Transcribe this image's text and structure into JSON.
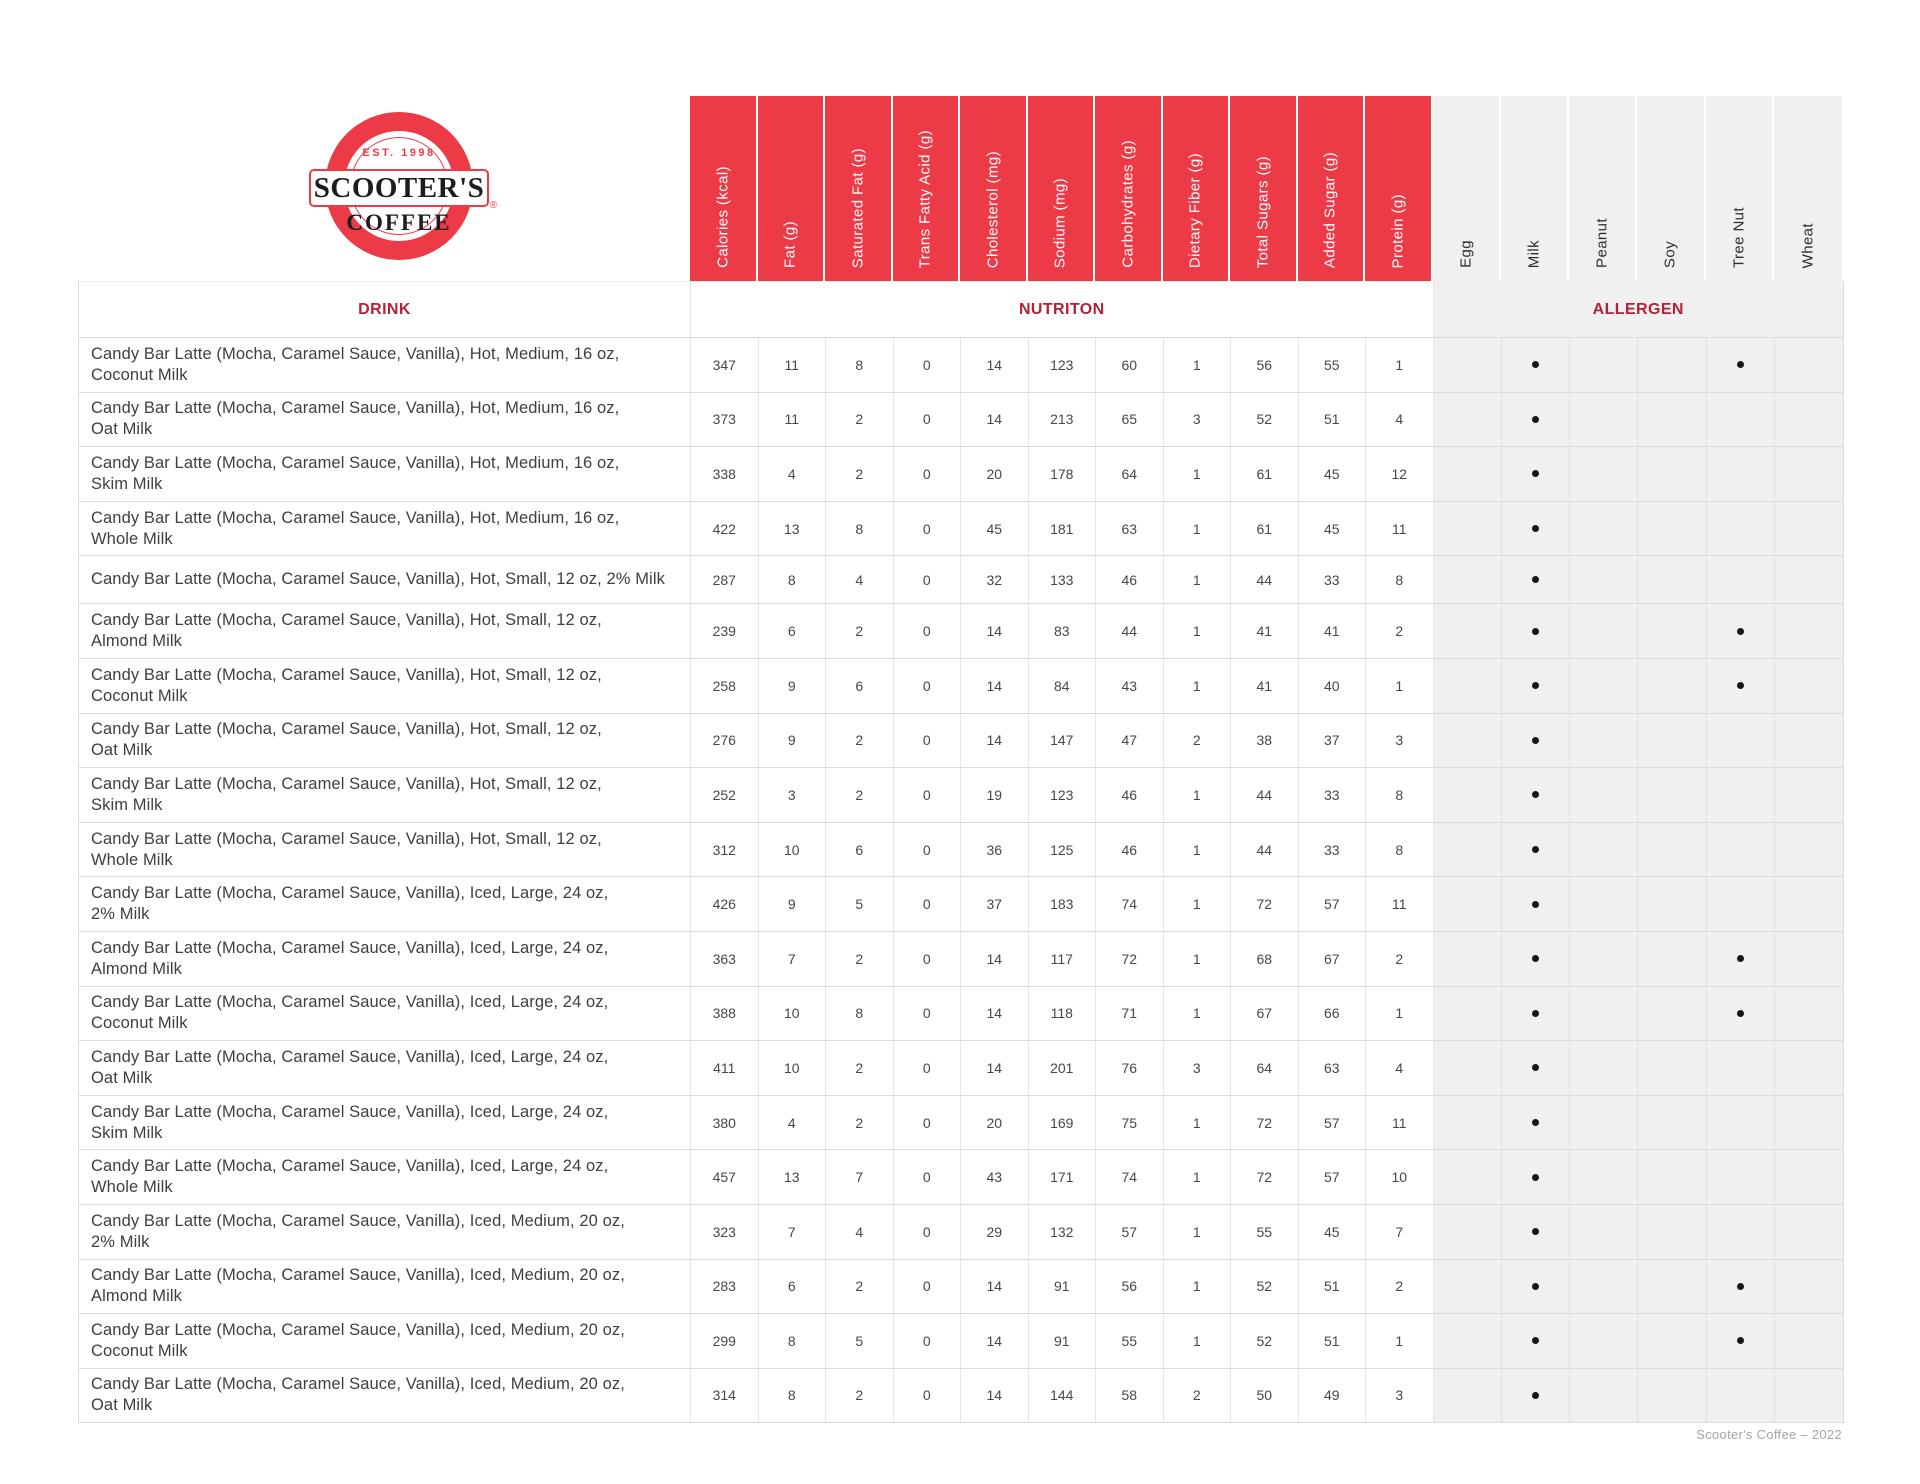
{
  "logo": {
    "est": "EST. 1998",
    "brand_top": "SCOOTER'S",
    "brand_bottom": "COFFEE",
    "registered_mark": "®"
  },
  "colors": {
    "brand_red": "#ec3a47",
    "section_header_text": "#b32139",
    "allergen_bg": "#f0f0f1",
    "dot": "#161616"
  },
  "section_headers": {
    "drink": "DRINK",
    "nutrition": "NUTRITON",
    "allergen": "ALLERGEN"
  },
  "nutrition_columns": [
    "Calories (kcal)",
    "Fat (g)",
    "Saturated Fat (g)",
    "Trans Fatty Acid (g)",
    "Cholesterol (mg)",
    "Sodium (mg)",
    "Carbohydrates (g)",
    "Dietary Fiber (g)",
    "Total Sugars (g)",
    "Added Sugar (g)",
    "Protein (g)"
  ],
  "allergen_columns": [
    "Egg",
    "Milk",
    "Peanut",
    "Soy",
    "Tree Nut",
    "Wheat"
  ],
  "rows": [
    {
      "name_lines": [
        "Candy Bar Latte (Mocha, Caramel Sauce, Vanilla), Hot, Medium, 16 oz,",
        "Coconut Milk"
      ],
      "values": [
        347,
        11,
        8,
        0,
        14,
        123,
        60,
        1,
        56,
        55,
        1
      ],
      "allergens": [
        0,
        1,
        0,
        0,
        1,
        0
      ]
    },
    {
      "name_lines": [
        "Candy Bar Latte (Mocha, Caramel Sauce, Vanilla), Hot, Medium, 16 oz,",
        "Oat Milk"
      ],
      "values": [
        373,
        11,
        2,
        0,
        14,
        213,
        65,
        3,
        52,
        51,
        4
      ],
      "allergens": [
        0,
        1,
        0,
        0,
        0,
        0
      ]
    },
    {
      "name_lines": [
        "Candy Bar Latte (Mocha, Caramel Sauce, Vanilla), Hot, Medium, 16 oz,",
        "Skim Milk"
      ],
      "values": [
        338,
        4,
        2,
        0,
        20,
        178,
        64,
        1,
        61,
        45,
        12
      ],
      "allergens": [
        0,
        1,
        0,
        0,
        0,
        0
      ]
    },
    {
      "name_lines": [
        "Candy Bar Latte (Mocha, Caramel Sauce, Vanilla), Hot, Medium, 16 oz,",
        "Whole Milk"
      ],
      "values": [
        422,
        13,
        8,
        0,
        45,
        181,
        63,
        1,
        61,
        45,
        11
      ],
      "allergens": [
        0,
        1,
        0,
        0,
        0,
        0
      ]
    },
    {
      "name_lines": [
        "Candy Bar Latte (Mocha, Caramel Sauce, Vanilla), Hot, Small, 12 oz, 2% Milk"
      ],
      "values": [
        287,
        8,
        4,
        0,
        32,
        133,
        46,
        1,
        44,
        33,
        8
      ],
      "allergens": [
        0,
        1,
        0,
        0,
        0,
        0
      ]
    },
    {
      "name_lines": [
        "Candy Bar Latte (Mocha, Caramel Sauce, Vanilla), Hot, Small, 12 oz,",
        "Almond Milk"
      ],
      "values": [
        239,
        6,
        2,
        0,
        14,
        83,
        44,
        1,
        41,
        41,
        2
      ],
      "allergens": [
        0,
        1,
        0,
        0,
        1,
        0
      ]
    },
    {
      "name_lines": [
        "Candy Bar Latte (Mocha, Caramel Sauce, Vanilla), Hot, Small, 12 oz,",
        "Coconut Milk"
      ],
      "values": [
        258,
        9,
        6,
        0,
        14,
        84,
        43,
        1,
        41,
        40,
        1
      ],
      "allergens": [
        0,
        1,
        0,
        0,
        1,
        0
      ]
    },
    {
      "name_lines": [
        "Candy Bar Latte (Mocha, Caramel Sauce, Vanilla), Hot, Small, 12 oz,",
        "Oat Milk"
      ],
      "values": [
        276,
        9,
        2,
        0,
        14,
        147,
        47,
        2,
        38,
        37,
        3
      ],
      "allergens": [
        0,
        1,
        0,
        0,
        0,
        0
      ]
    },
    {
      "name_lines": [
        "Candy Bar Latte (Mocha, Caramel Sauce, Vanilla), Hot, Small, 12 oz,",
        "Skim Milk"
      ],
      "values": [
        252,
        3,
        2,
        0,
        19,
        123,
        46,
        1,
        44,
        33,
        8
      ],
      "allergens": [
        0,
        1,
        0,
        0,
        0,
        0
      ]
    },
    {
      "name_lines": [
        "Candy Bar Latte (Mocha, Caramel Sauce, Vanilla), Hot, Small, 12 oz,",
        "Whole Milk"
      ],
      "values": [
        312,
        10,
        6,
        0,
        36,
        125,
        46,
        1,
        44,
        33,
        8
      ],
      "allergens": [
        0,
        1,
        0,
        0,
        0,
        0
      ]
    },
    {
      "name_lines": [
        "Candy Bar Latte (Mocha, Caramel Sauce, Vanilla), Iced, Large, 24 oz,",
        "2% Milk"
      ],
      "values": [
        426,
        9,
        5,
        0,
        37,
        183,
        74,
        1,
        72,
        57,
        11
      ],
      "allergens": [
        0,
        1,
        0,
        0,
        0,
        0
      ]
    },
    {
      "name_lines": [
        "Candy Bar Latte (Mocha, Caramel Sauce, Vanilla), Iced, Large, 24 oz,",
        "Almond Milk"
      ],
      "values": [
        363,
        7,
        2,
        0,
        14,
        117,
        72,
        1,
        68,
        67,
        2
      ],
      "allergens": [
        0,
        1,
        0,
        0,
        1,
        0
      ]
    },
    {
      "name_lines": [
        "Candy Bar Latte (Mocha, Caramel Sauce, Vanilla), Iced, Large, 24 oz,",
        "Coconut Milk"
      ],
      "values": [
        388,
        10,
        8,
        0,
        14,
        118,
        71,
        1,
        67,
        66,
        1
      ],
      "allergens": [
        0,
        1,
        0,
        0,
        1,
        0
      ]
    },
    {
      "name_lines": [
        "Candy Bar Latte (Mocha, Caramel Sauce, Vanilla), Iced, Large, 24 oz,",
        "Oat Milk"
      ],
      "values": [
        411,
        10,
        2,
        0,
        14,
        201,
        76,
        3,
        64,
        63,
        4
      ],
      "allergens": [
        0,
        1,
        0,
        0,
        0,
        0
      ]
    },
    {
      "name_lines": [
        "Candy Bar Latte (Mocha, Caramel Sauce, Vanilla), Iced, Large, 24 oz,",
        "Skim Milk"
      ],
      "values": [
        380,
        4,
        2,
        0,
        20,
        169,
        75,
        1,
        72,
        57,
        11
      ],
      "allergens": [
        0,
        1,
        0,
        0,
        0,
        0
      ]
    },
    {
      "name_lines": [
        "Candy Bar Latte (Mocha, Caramel Sauce, Vanilla), Iced, Large, 24 oz,",
        "Whole Milk"
      ],
      "values": [
        457,
        13,
        7,
        0,
        43,
        171,
        74,
        1,
        72,
        57,
        10
      ],
      "allergens": [
        0,
        1,
        0,
        0,
        0,
        0
      ]
    },
    {
      "name_lines": [
        "Candy Bar Latte (Mocha, Caramel Sauce, Vanilla), Iced, Medium, 20 oz,",
        "2% Milk"
      ],
      "values": [
        323,
        7,
        4,
        0,
        29,
        132,
        57,
        1,
        55,
        45,
        7
      ],
      "allergens": [
        0,
        1,
        0,
        0,
        0,
        0
      ]
    },
    {
      "name_lines": [
        "Candy Bar Latte (Mocha, Caramel Sauce, Vanilla), Iced, Medium, 20 oz,",
        "Almond Milk"
      ],
      "values": [
        283,
        6,
        2,
        0,
        14,
        91,
        56,
        1,
        52,
        51,
        2
      ],
      "allergens": [
        0,
        1,
        0,
        0,
        1,
        0
      ]
    },
    {
      "name_lines": [
        "Candy Bar Latte (Mocha, Caramel Sauce, Vanilla), Iced, Medium, 20 oz,",
        "Coconut Milk"
      ],
      "values": [
        299,
        8,
        5,
        0,
        14,
        91,
        55,
        1,
        52,
        51,
        1
      ],
      "allergens": [
        0,
        1,
        0,
        0,
        1,
        0
      ]
    },
    {
      "name_lines": [
        "Candy Bar Latte (Mocha, Caramel Sauce, Vanilla), Iced, Medium, 20 oz,",
        "Oat Milk"
      ],
      "values": [
        314,
        8,
        2,
        0,
        14,
        144,
        58,
        2,
        50,
        49,
        3
      ],
      "allergens": [
        0,
        1,
        0,
        0,
        0,
        0
      ]
    }
  ],
  "footer": "Scooter's Coffee – 2022"
}
